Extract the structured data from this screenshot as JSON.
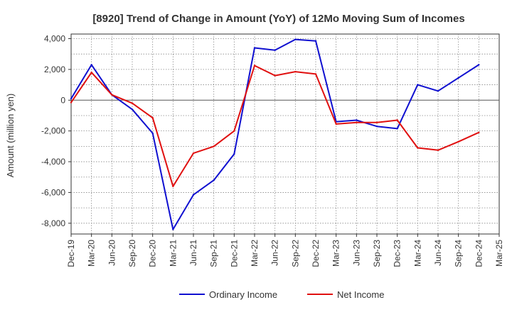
{
  "chart_data": {
    "type": "line",
    "title": "[8920]  Trend of Change in Amount (YoY) of 12Mo Moving Sum of Incomes",
    "xlabel": "",
    "ylabel": "Amount (million yen)",
    "categories": [
      "Dec-19",
      "Mar-20",
      "Jun-20",
      "Sep-20",
      "Dec-20",
      "Mar-21",
      "Jun-21",
      "Sep-21",
      "Dec-21",
      "Mar-22",
      "Jun-22",
      "Sep-22",
      "Dec-22",
      "Mar-23",
      "Jun-23",
      "Sep-23",
      "Dec-23",
      "Mar-24",
      "Jun-24",
      "Sep-24",
      "Dec-24",
      "Mar-25"
    ],
    "yticks": [
      4000,
      2000,
      0,
      -2000,
      -4000,
      -6000,
      -8000
    ],
    "ytick_labels": [
      "4,000",
      "2,000",
      "0",
      "-2,000",
      "-4,000",
      "-6,000",
      "-8,000"
    ],
    "ylim": [
      -8700,
      4300
    ],
    "grid": true,
    "legend_position": "bottom",
    "series": [
      {
        "name": "Ordinary Income",
        "color": "#1010d0",
        "values": [
          100,
          2300,
          350,
          -600,
          -2150,
          -8400,
          -6150,
          -5200,
          -3500,
          3400,
          3250,
          3950,
          3850,
          -1400,
          -1300,
          -1700,
          -1850,
          1000,
          600,
          1450,
          2300,
          null
        ]
      },
      {
        "name": "Net Income",
        "color": "#e01010",
        "values": [
          -150,
          1800,
          350,
          -200,
          -1150,
          -5600,
          -3450,
          -3000,
          -2000,
          2250,
          1600,
          1850,
          1700,
          -1550,
          -1450,
          -1450,
          -1300,
          -3100,
          -3250,
          -2700,
          -2100,
          null
        ]
      }
    ]
  }
}
